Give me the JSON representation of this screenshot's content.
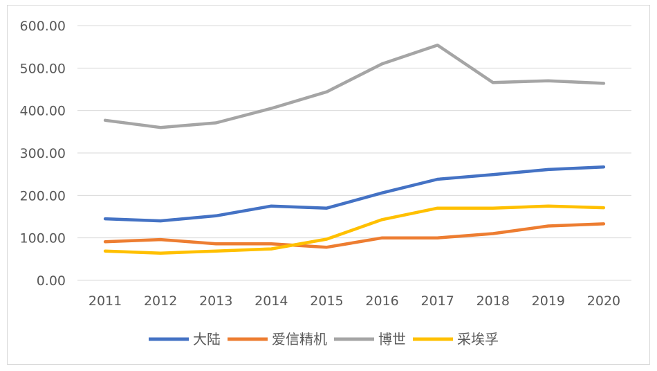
{
  "chart_data": {
    "type": "line",
    "title": "",
    "xlabel": "",
    "ylabel": "",
    "x": [
      "2011",
      "2012",
      "2013",
      "2014",
      "2015",
      "2016",
      "2017",
      "2018",
      "2019",
      "2020"
    ],
    "ylim": [
      0,
      600
    ],
    "yticks": [
      "0.00",
      "100.00",
      "200.00",
      "300.00",
      "400.00",
      "500.00",
      "600.00"
    ],
    "grid": true,
    "legend": "bottom",
    "series": [
      {
        "name": "大陆",
        "color": "#4472C4",
        "values": [
          145,
          140,
          152,
          175,
          170,
          206,
          238,
          249,
          261,
          267
        ]
      },
      {
        "name": "爱信精机",
        "color": "#ED7D31",
        "values": [
          91,
          96,
          86,
          86,
          78,
          100,
          100,
          110,
          128,
          133
        ]
      },
      {
        "name": "博世",
        "color": "#A5A5A5",
        "values": [
          377,
          360,
          371,
          405,
          444,
          510,
          554,
          466,
          470,
          464
        ]
      },
      {
        "name": "采埃孚",
        "color": "#FFC000",
        "values": [
          69,
          64,
          69,
          74,
          97,
          143,
          170,
          170,
          175,
          171
        ]
      }
    ]
  }
}
